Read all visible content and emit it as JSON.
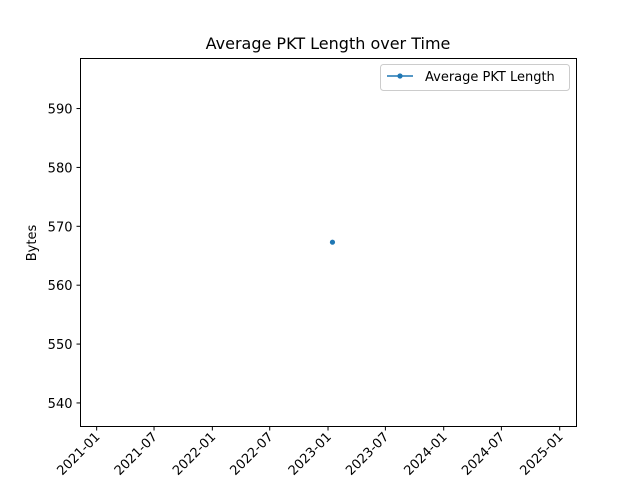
{
  "chart_data": {
    "type": "line",
    "title": "Average PKT Length over Time",
    "xlabel": "",
    "ylabel": "Bytes",
    "x_type": "date",
    "xlim": [
      "2020-11-11",
      "2025-02-23"
    ],
    "ylim": [
      536.0,
      598.5
    ],
    "x_ticks": [
      "2021-01",
      "2021-07",
      "2022-01",
      "2022-07",
      "2023-01",
      "2023-07",
      "2024-01",
      "2024-07",
      "2025-01"
    ],
    "y_ticks": [
      540,
      550,
      560,
      570,
      580,
      590
    ],
    "series": [
      {
        "name": "Average PKT Length",
        "color": "#1f77b4",
        "marker": "circle",
        "x": [
          "2023-01-15"
        ],
        "y": [
          567.3
        ]
      }
    ],
    "legend": {
      "position": "top-right"
    },
    "grid": false
  }
}
